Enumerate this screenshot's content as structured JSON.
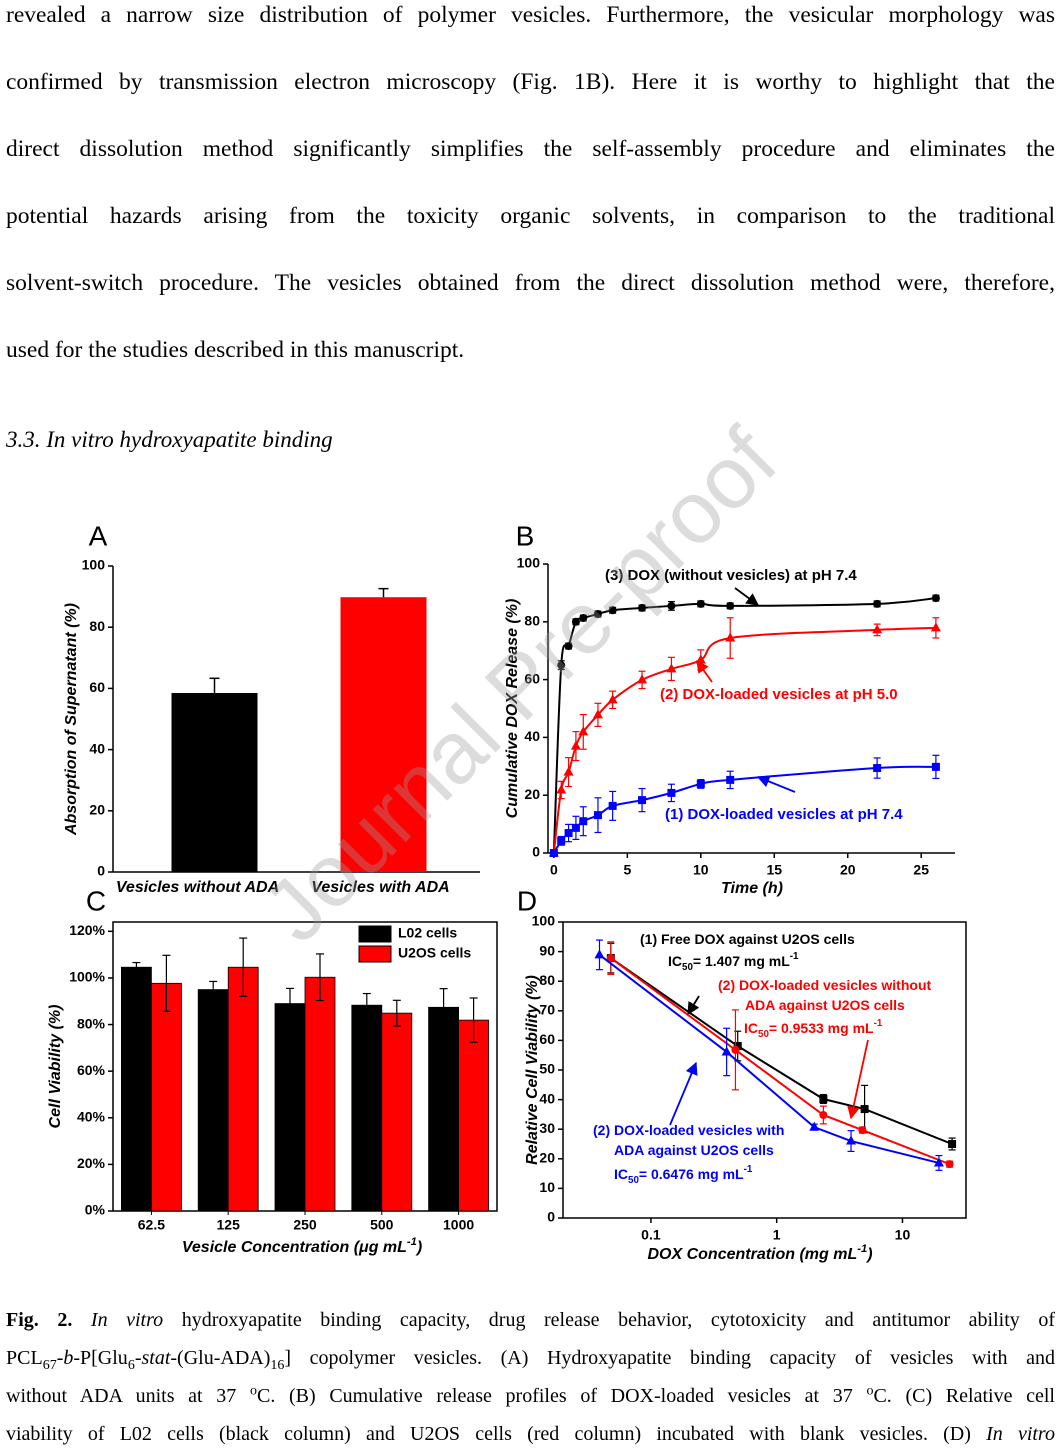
{
  "paragraph_lines": [
    "revealed a narrow size distribution of polymer vesicles. Furthermore, the vesicular morphology was",
    "confirmed by transmission electron microscopy (Fig. 1B). Here it is worthy to highlight that the",
    "direct dissolution method significantly simplifies the self-assembly procedure and eliminates the",
    "potential hazards arising from the toxicity organic solvents, in comparison to the traditional",
    "solvent-switch procedure. The vesicles obtained from the direct dissolution method were, therefore,",
    "used for the studies described in this manuscript."
  ],
  "section_heading": "3.3. In vitro hydroxyapatite binding",
  "watermark": "Journal Pre-proof",
  "chart_data": [
    {
      "type": "bar",
      "panel": "A",
      "ylabel": "Absorption of Supernatant (%)",
      "categories": [
        "Vesicles without ADA",
        "Vesicles with ADA"
      ],
      "values": [
        58.5,
        89.8
      ],
      "errors": [
        4.8,
        2.8
      ],
      "colors": [
        "#000000",
        "#ff0000"
      ],
      "ylim": [
        0,
        100
      ],
      "yticks": [
        0,
        20,
        40,
        60,
        80,
        100
      ]
    },
    {
      "type": "line",
      "panel": "B",
      "xlabel": "Time (h)",
      "ylabel": "Cumulative DOX Release (%)",
      "x": [
        0,
        0.5,
        1,
        1.5,
        2,
        3,
        4,
        6,
        8,
        10,
        12,
        22,
        26
      ],
      "xlim": [
        -0.4,
        27.3
      ],
      "xticks": [
        0,
        5,
        10,
        15,
        20,
        25
      ],
      "ylim": [
        0,
        100
      ],
      "yticks": [
        0,
        20,
        40,
        60,
        80,
        100
      ],
      "smooth": true,
      "series": [
        {
          "name": "(3) DOX (without vesicles) at pH 7.4",
          "color": "#000000",
          "marker": "circle",
          "values": [
            0,
            65,
            71.6,
            80,
            81.3,
            82.7,
            84,
            84.8,
            85.5,
            86.2,
            85.5,
            86.2,
            88.2
          ],
          "errors": [
            0,
            1.5,
            1,
            1,
            1,
            1,
            1,
            1,
            1.5,
            1,
            1,
            1,
            1
          ]
        },
        {
          "name": "(2) DOX-loaded vesicles at pH 5.0",
          "color": "#ff0000",
          "marker": "triangle",
          "values": [
            0,
            21.8,
            28,
            37,
            41.9,
            47.8,
            53,
            59.9,
            63.7,
            66.8,
            74.4,
            77.2,
            77.9
          ],
          "errors": [
            0,
            3,
            5,
            5,
            6,
            4,
            3,
            3,
            4,
            3.5,
            7,
            2,
            3.5
          ]
        },
        {
          "name": "(1) DOX-loaded vesicles at pH 7.4",
          "color": "#0000ff",
          "marker": "square",
          "values": [
            0,
            4.2,
            6.9,
            8.7,
            11,
            13.1,
            16.3,
            18.3,
            20.8,
            23.9,
            25.3,
            29.4,
            29.8
          ],
          "errors": [
            0,
            1.5,
            3,
            4,
            5,
            6,
            5,
            4,
            3,
            1.5,
            3,
            3.5,
            4
          ]
        }
      ]
    },
    {
      "type": "grouped_bar",
      "panel": "C",
      "ylabel": "Cell Viability (%)",
      "xlabel": [
        {
          "text": "Vesicle Concentration (μg mL"
        },
        {
          "text": "-1",
          "style": "sup"
        },
        {
          "text": ")"
        }
      ],
      "categories": [
        "62.5",
        "125",
        "250",
        "500",
        "1000"
      ],
      "series": [
        {
          "name": "L02 cells",
          "color": "#000000",
          "values": [
            104.6,
            95,
            89,
            88.3,
            87.4
          ],
          "errors": [
            2,
            3.5,
            6.5,
            5,
            8
          ]
        },
        {
          "name": "U2OS cells",
          "color": "#ff0000",
          "values": [
            97.7,
            104.6,
            100.3,
            84.9,
            81.9
          ],
          "errors": [
            12,
            12.5,
            10,
            5.5,
            9.5
          ]
        }
      ],
      "ylim": [
        0,
        124
      ],
      "yticks": [
        {
          "value": 0,
          "label": "0%"
        },
        {
          "value": 20,
          "label": "20%"
        },
        {
          "value": 40,
          "label": "40%"
        },
        {
          "value": 60,
          "label": "60%"
        },
        {
          "value": 80,
          "label": "80%"
        },
        {
          "value": 100,
          "label": "100%"
        },
        {
          "value": 120,
          "label": "120%"
        }
      ],
      "legend": "upper right",
      "frame": true
    },
    {
      "type": "line",
      "panel": "D",
      "ylabel": "Relative Cell Viability (%)",
      "xlabel": [
        {
          "text": "DOX Concentration (mg mL"
        },
        {
          "text": "-1",
          "style": "sup"
        },
        {
          "text": ")"
        }
      ],
      "xscale": "log",
      "xlim": [
        0.02,
        32
      ],
      "xticks": [
        0.1,
        1,
        10
      ],
      "ylim": [
        0,
        100
      ],
      "yticks": [
        0,
        10,
        20,
        30,
        40,
        50,
        60,
        70,
        80,
        90,
        100
      ],
      "frame": true,
      "series": [
        {
          "color": "#000000",
          "marker": "square",
          "annotation": [
            [
              {
                "text": "(1) Free DOX against U2OS cells"
              }
            ],
            [
              {
                "text": "IC"
              },
              {
                "text": "50",
                "style": "sub"
              },
              {
                "text": "= 1.407 mg mL"
              },
              {
                "text": "-1",
                "style": "sup"
              }
            ]
          ],
          "x": [
            0.048,
            0.49,
            2.35,
            5.0,
            24.8
          ],
          "values": [
            87.8,
            58.1,
            40.2,
            36.8,
            25
          ],
          "errors": [
            5,
            5,
            1.5,
            8,
            2
          ]
        },
        {
          "color": "#ff0000",
          "marker": "circle",
          "annotation": [
            [
              {
                "text": "(2) DOX-loaded vesicles without"
              }
            ],
            [
              {
                "text": "ADA against  U2OS cells"
              }
            ],
            [
              {
                "text": "IC"
              },
              {
                "text": "50",
                "style": "sub"
              },
              {
                "text": "= 0.9533 mg mL"
              },
              {
                "text": "-1",
                "style": "sup"
              }
            ]
          ],
          "x": [
            0.048,
            0.47,
            2.35,
            4.8,
            23.7
          ],
          "values": [
            87.8,
            56.8,
            34.8,
            29.7,
            18.2
          ],
          "errors": [
            5.5,
            13.5,
            3,
            1,
            1
          ]
        },
        {
          "color": "#0000ff",
          "marker": "triangle",
          "annotation": [
            [
              {
                "text": "(2) DOX-loaded vesicles with"
              }
            ],
            [
              {
                "text": "ADA against  U2OS cells"
              }
            ],
            [
              {
                "text": "IC"
              },
              {
                "text": "50",
                "style": "sub"
              },
              {
                "text": "= 0.6476 mg mL"
              },
              {
                "text": "-1",
                "style": "sup"
              }
            ]
          ],
          "x": [
            0.039,
            0.4,
            1.99,
            3.9,
            19.5
          ],
          "values": [
            88.9,
            56.1,
            30.7,
            26,
            18.6
          ],
          "errors": [
            5,
            8,
            1,
            3.5,
            2.5
          ]
        }
      ]
    }
  ],
  "caption_lines": [
    [
      {
        "text": "Fig. 2. ",
        "style": "bold"
      },
      {
        "text": "In vitro",
        "style": "italic"
      },
      {
        "text": " hydroxyapatite binding capacity, drug release behavior, cytotoxicity and antitumor ability of"
      }
    ],
    [
      {
        "text": "PCL"
      },
      {
        "text": "67",
        "style": "sub"
      },
      {
        "text": "-"
      },
      {
        "text": "b",
        "style": "italic"
      },
      {
        "text": "-P[Glu"
      },
      {
        "text": "6",
        "style": "sub"
      },
      {
        "text": "-"
      },
      {
        "text": "stat",
        "style": "italic"
      },
      {
        "text": "-(Glu-ADA)"
      },
      {
        "text": "16",
        "style": "sub"
      },
      {
        "text": "] copolymer vesicles. (A) Hydroxyapatite binding capacity of vesicles with and"
      }
    ],
    [
      {
        "text": "without ADA units at 37 "
      },
      {
        "text": "o",
        "style": "sup"
      },
      {
        "text": "C. (B) Cumulative release profiles of DOX-loaded vesicles at 37 "
      },
      {
        "text": "o",
        "style": "sup"
      },
      {
        "text": "C. (C) Relative cell"
      }
    ],
    [
      {
        "text": "viability of L02 cells (black column) and U2OS cells (red column) incubated with blank vesicles. (D) "
      },
      {
        "text": "In vitro",
        "style": "italic"
      }
    ]
  ]
}
